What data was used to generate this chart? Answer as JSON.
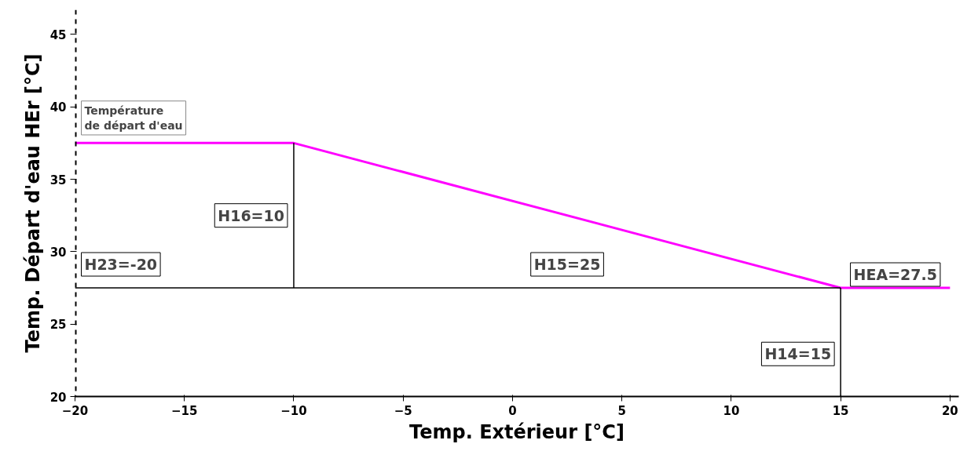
{
  "chart_data": {
    "type": "line",
    "xlabel": "Temp. Extérieur [°C]",
    "ylabel": "Temp. Départ d'eau HEr [°C]",
    "xlim": [
      -20,
      20.4
    ],
    "ylim": [
      20,
      46.7
    ],
    "xticks": [
      -20,
      -15,
      -10,
      -5,
      0,
      5,
      10,
      15,
      20
    ],
    "yticks": [
      20,
      25,
      30,
      35,
      40,
      45
    ],
    "grid": false,
    "marker": "none",
    "line_style": "solid",
    "series": [
      {
        "color": "#ff00ff",
        "x": [
          -20,
          -10,
          15,
          20
        ],
        "values": [
          37.5,
          37.5,
          27.5,
          27.5
        ]
      },
      {
        "color": "#000000",
        "x": [
          -20,
          15
        ],
        "values": [
          27.5,
          27.5
        ]
      },
      {
        "color": "#000000",
        "x": [
          -10,
          -10
        ],
        "values": [
          27.5,
          37.5
        ]
      },
      {
        "color": "#000000",
        "x": [
          15,
          15
        ],
        "values": [
          20,
          27.5
        ]
      }
    ],
    "ref_lines": [
      {
        "axis": "x",
        "value": -20,
        "color": "#000000",
        "line_style": "dashed"
      }
    ],
    "annotations": [
      {
        "text": "Température\nde départ d'eau",
        "x": -20,
        "y": 37.5
      },
      {
        "text": "H23=-20",
        "x": -20,
        "y": 27.5
      },
      {
        "text": "H16=10",
        "x": -10,
        "y": 32.5
      },
      {
        "text": "H15=25",
        "x": 2.5,
        "y": 27.5
      },
      {
        "text": "H14=15",
        "x": 15,
        "y": 23.75
      },
      {
        "text": "HEA=27.5",
        "x": 17.5,
        "y": 27.5
      }
    ]
  }
}
